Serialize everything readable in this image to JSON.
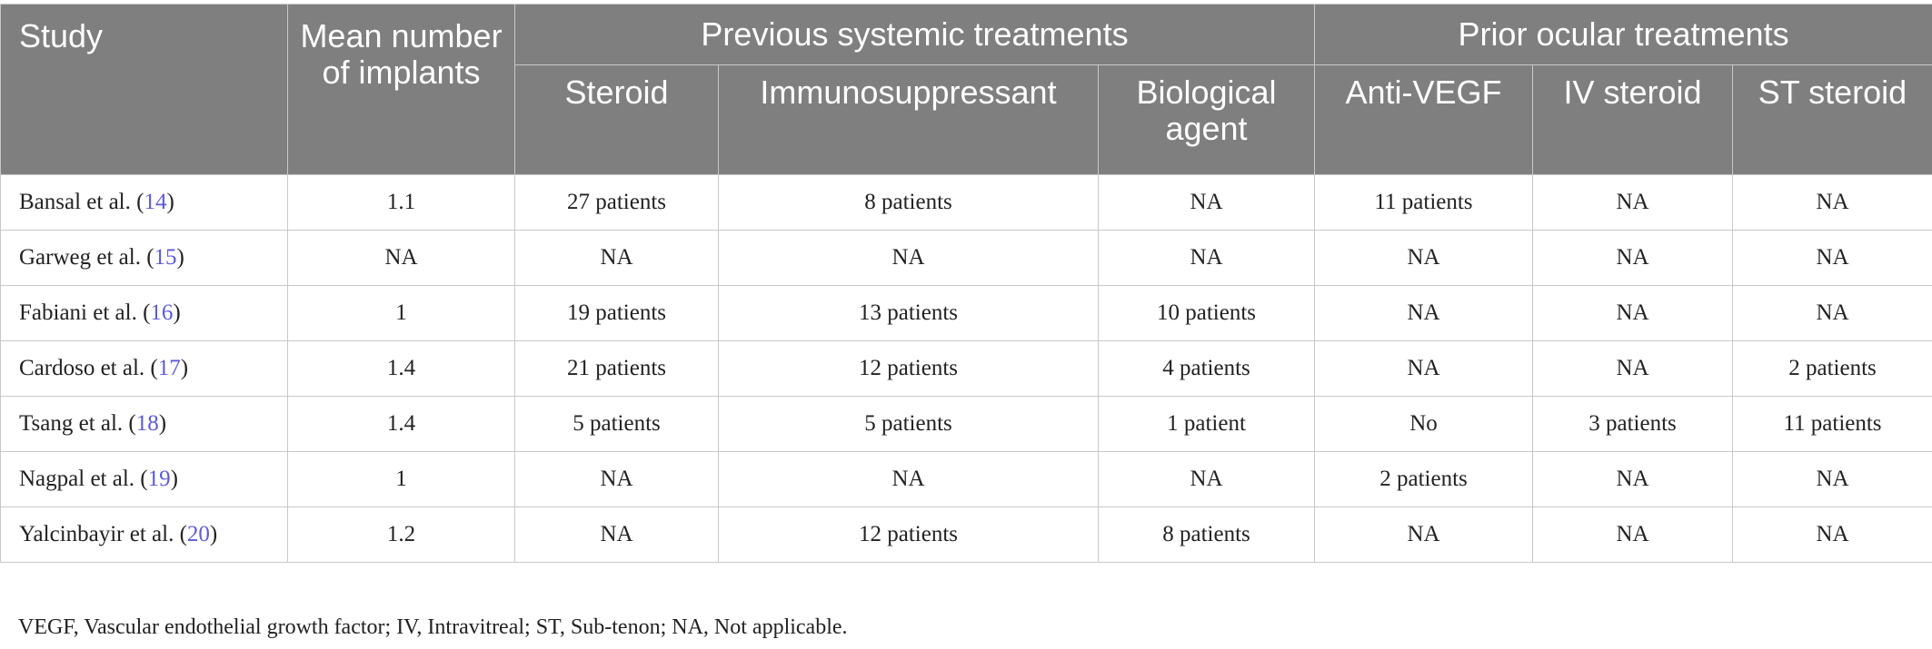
{
  "header": {
    "study": "Study",
    "mean_implants": "Mean number of implants",
    "systemic_group": "Previous systemic treatments",
    "ocular_group": "Prior ocular treatments",
    "steroid": "Steroid",
    "immunosuppressant": "Immunosuppressant",
    "biological": "Biological agent",
    "anti_vegf": "Anti-VEGF",
    "iv_steroid": "IV steroid",
    "st_steroid": "ST steroid"
  },
  "rows": [
    {
      "study": "Bansal et al. (",
      "ref": "14",
      "close": ")",
      "mean": "1.1",
      "steroid": "27 patients",
      "immuno": "8 patients",
      "bio": "NA",
      "antivegf": "11 patients",
      "iv": "NA",
      "st": "NA"
    },
    {
      "study": "Garweg et al. (",
      "ref": "15",
      "close": ")",
      "mean": "NA",
      "steroid": "NA",
      "immuno": "NA",
      "bio": "NA",
      "antivegf": "NA",
      "iv": "NA",
      "st": "NA"
    },
    {
      "study": "Fabiani et al. (",
      "ref": "16",
      "close": ")",
      "mean": "1",
      "steroid": "19 patients",
      "immuno": "13 patients",
      "bio": "10 patients",
      "antivegf": "NA",
      "iv": "NA",
      "st": "NA"
    },
    {
      "study": "Cardoso et al. (",
      "ref": "17",
      "close": ")",
      "mean": "1.4",
      "steroid": "21 patients",
      "immuno": "12 patients",
      "bio": "4 patients",
      "antivegf": "NA",
      "iv": "NA",
      "st": "2 patients"
    },
    {
      "study": "Tsang et al. (",
      "ref": "18",
      "close": ")",
      "mean": "1.4",
      "steroid": "5 patients",
      "immuno": "5 patients",
      "bio": "1 patient",
      "antivegf": "No",
      "iv": "3 patients",
      "st": "11 patients"
    },
    {
      "study": "Nagpal et al. (",
      "ref": "19",
      "close": ")",
      "mean": "1",
      "steroid": "NA",
      "immuno": "NA",
      "bio": "NA",
      "antivegf": "2 patients",
      "iv": "NA",
      "st": "NA"
    },
    {
      "study": "Yalcinbayir et al. (",
      "ref": "20",
      "close": ")",
      "mean": "1.2",
      "steroid": "NA",
      "immuno": "12 patients",
      "bio": "8 patients",
      "antivegf": "NA",
      "iv": "NA",
      "st": "NA"
    }
  ],
  "footnote": "VEGF, Vascular endothelial growth factor; IV, Intravitreal; ST, Sub-tenon; NA, Not applicable."
}
